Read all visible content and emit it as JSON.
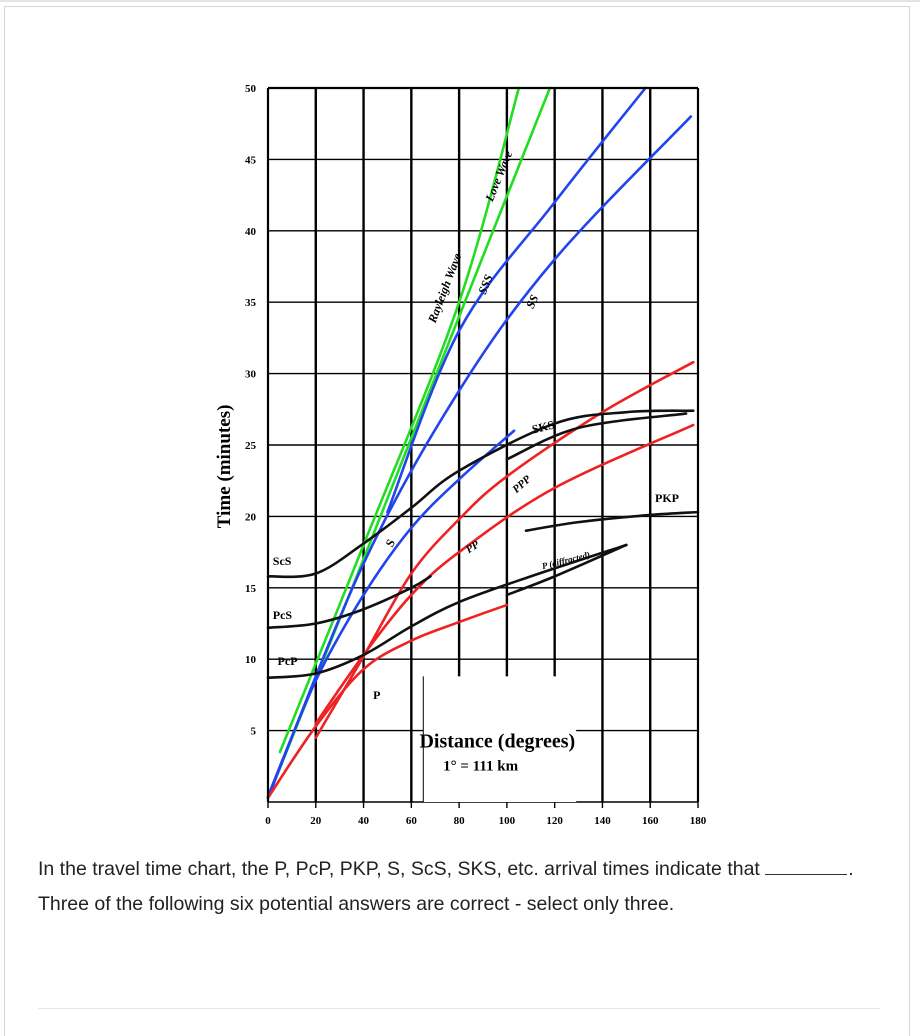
{
  "chart_data": {
    "type": "line",
    "title": "",
    "xlabel": "Distance (degrees)",
    "xlabel_note": "1° = 111 km",
    "ylabel": "Time (minutes)",
    "xlim": [
      0,
      180
    ],
    "ylim": [
      0,
      50
    ],
    "xticks": [
      0,
      20,
      40,
      60,
      80,
      100,
      120,
      140,
      160,
      180
    ],
    "yticks": [
      5,
      10,
      15,
      20,
      25,
      30,
      35,
      40,
      45,
      50
    ],
    "grid": true,
    "series": [
      {
        "name": "Rayleigh Wave",
        "color": "#22dd22",
        "points": [
          [
            5,
            3.5
          ],
          [
            40,
            18
          ],
          [
            80,
            35
          ],
          [
            105,
            50
          ]
        ]
      },
      {
        "name": "Love Wave",
        "color": "#22dd22",
        "points": [
          [
            0,
            0.3
          ],
          [
            40,
            17
          ],
          [
            80,
            34
          ],
          [
            118,
            50
          ]
        ]
      },
      {
        "name": "SSS",
        "color": "#2244ee",
        "points": [
          [
            50,
            20.3
          ],
          [
            80,
            33
          ],
          [
            120,
            42
          ],
          [
            158,
            50
          ]
        ]
      },
      {
        "name": "SS",
        "color": "#2244ee",
        "points": [
          [
            0,
            0.3
          ],
          [
            40,
            16.7
          ],
          [
            80,
            28.8
          ],
          [
            120,
            38
          ],
          [
            177,
            48
          ]
        ]
      },
      {
        "name": "S",
        "color": "#2244ee",
        "points": [
          [
            0,
            0.4
          ],
          [
            20,
            8.5
          ],
          [
            40,
            14.5
          ],
          [
            60,
            19.2
          ],
          [
            80,
            22.6
          ],
          [
            103,
            26
          ]
        ]
      },
      {
        "name": "P",
        "color": "#ee2222",
        "points": [
          [
            0,
            0.3
          ],
          [
            20,
            5.3
          ],
          [
            40,
            9.3
          ],
          [
            60,
            11.3
          ],
          [
            80,
            12.6
          ],
          [
            100,
            13.8
          ]
        ]
      },
      {
        "name": "PP",
        "color": "#ee2222",
        "points": [
          [
            20,
            5.5
          ],
          [
            40,
            10.3
          ],
          [
            60,
            14.5
          ],
          [
            80,
            17.5
          ],
          [
            120,
            22
          ],
          [
            178,
            26.4
          ]
        ]
      },
      {
        "name": "PPP",
        "color": "#ee2222",
        "points": [
          [
            20,
            4.5
          ],
          [
            40,
            10.2
          ],
          [
            60,
            16
          ],
          [
            80,
            19.8
          ],
          [
            100,
            22.8
          ],
          [
            140,
            27.3
          ],
          [
            178,
            30.8
          ]
        ]
      },
      {
        "name": "ScS",
        "color": "#111111",
        "points": [
          [
            0,
            15.8
          ],
          [
            20,
            16
          ],
          [
            40,
            18.1
          ],
          [
            60,
            20.6
          ],
          [
            80,
            23.2
          ],
          [
            120,
            26.5
          ],
          [
            150,
            27.3
          ],
          [
            178,
            27.4
          ]
        ]
      },
      {
        "name": "PcS",
        "color": "#111111",
        "points": [
          [
            0,
            12.2
          ],
          [
            20,
            12.5
          ],
          [
            40,
            13.5
          ],
          [
            60,
            15
          ],
          [
            68,
            15.8
          ]
        ]
      },
      {
        "name": "PcP",
        "color": "#111111",
        "points": [
          [
            0,
            8.7
          ],
          [
            20,
            9
          ],
          [
            40,
            10.3
          ],
          [
            60,
            12.3
          ],
          [
            80,
            14
          ],
          [
            110,
            15.8
          ],
          [
            150,
            18
          ]
        ]
      },
      {
        "name": "SKS",
        "color": "#111111",
        "points": [
          [
            100,
            24
          ],
          [
            130,
            26.2
          ],
          [
            175,
            27.2
          ]
        ]
      },
      {
        "name": "PKP",
        "color": "#111111",
        "points": [
          [
            108,
            19
          ],
          [
            130,
            19.6
          ],
          [
            160,
            20.1
          ],
          [
            180,
            20.3
          ]
        ]
      },
      {
        "name": "P (diffracted)",
        "color": "#111111",
        "points": [
          [
            100,
            14.5
          ],
          [
            120,
            15.8
          ],
          [
            150,
            18
          ]
        ]
      }
    ],
    "annotations": [
      "Rayleigh Wave",
      "Love Wave",
      "SSS",
      "SS",
      "S",
      "SKS",
      "PPP",
      "PP",
      "P (diffracted)",
      "PKP",
      "ScS",
      "PcS",
      "PcP",
      "P"
    ]
  },
  "question": {
    "text_before": "In the travel time chart, the P, PcP, PKP, S, ScS, SKS, etc. arrival times indicate that",
    "blank": "_______",
    "text_after": ". Three of the following six potential answers are correct - select only three."
  }
}
